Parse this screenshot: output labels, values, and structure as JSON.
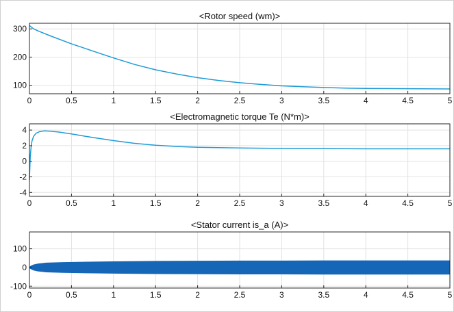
{
  "chart_data": [
    {
      "type": "line",
      "title": "<Rotor speed (wm)>",
      "xlim": [
        0,
        5
      ],
      "ylim": [
        70,
        320
      ],
      "x_ticks": [
        "0",
        "0.5",
        "1",
        "1.5",
        "2",
        "2.5",
        "3",
        "3.5",
        "4",
        "4.5",
        "5"
      ],
      "y_ticks": [
        "100",
        "200",
        "300"
      ],
      "grid": true,
      "color": "#1f9bd6",
      "series": [
        {
          "x": [
            0,
            0.05,
            0.1,
            0.25,
            0.5,
            0.75,
            1,
            1.25,
            1.5,
            1.75,
            2,
            2.25,
            2.5,
            2.75,
            3,
            3.25,
            3.5,
            3.75,
            4,
            4.5,
            5
          ],
          "values": [
            312,
            300,
            293,
            275,
            247,
            222,
            197,
            174,
            155,
            140,
            127,
            117,
            109,
            103,
            98,
            95,
            92,
            90,
            89,
            88,
            87
          ]
        }
      ]
    },
    {
      "type": "line",
      "title": "<Electromagnetic torque Te (N*m)>",
      "xlim": [
        0,
        5
      ],
      "ylim": [
        -4.5,
        4.8
      ],
      "x_ticks": [
        "0",
        "0.5",
        "1",
        "1.5",
        "2",
        "2.5",
        "3",
        "3.5",
        "4",
        "4.5",
        "5"
      ],
      "y_ticks": [
        "-4",
        "-2",
        "0",
        "2",
        "4"
      ],
      "grid": true,
      "color": "#1f9bd6",
      "series": [
        {
          "x": [
            0,
            0.005,
            0.01,
            0.02,
            0.03,
            0.05,
            0.08,
            0.12,
            0.18,
            0.25,
            0.35,
            0.5,
            0.75,
            1,
            1.25,
            1.5,
            1.75,
            2,
            2.5,
            3,
            3.5,
            4,
            4.5,
            5
          ],
          "values": [
            -2.4,
            -0.8,
            0.6,
            1.9,
            2.6,
            3.2,
            3.6,
            3.8,
            3.9,
            3.85,
            3.75,
            3.5,
            3.05,
            2.65,
            2.3,
            2.05,
            1.9,
            1.8,
            1.7,
            1.65,
            1.62,
            1.6,
            1.6,
            1.6
          ]
        }
      ]
    },
    {
      "type": "line",
      "title": "<Stator current is_a (A)>",
      "xlim": [
        0,
        5
      ],
      "ylim": [
        -110,
        190
      ],
      "x_ticks": [
        "0",
        "0.5",
        "1",
        "1.5",
        "2",
        "2.5",
        "3",
        "3.5",
        "4",
        "4.5",
        "5"
      ],
      "y_ticks": [
        "-100",
        "0",
        "100"
      ],
      "grid": true,
      "color": "#1566b7",
      "series": [
        {
          "x": [
            0,
            0.02,
            0.05,
            0.1,
            0.2,
            0.4,
            0.7,
            1,
            1.5,
            2,
            2.5,
            3,
            3.5,
            4,
            4.5,
            5
          ],
          "upper": [
            2,
            8,
            14,
            19,
            24,
            27,
            29,
            31,
            33,
            34,
            35,
            35,
            36,
            36,
            36,
            36
          ],
          "lower": [
            -2,
            -8,
            -14,
            -19,
            -24,
            -27,
            -29,
            -31,
            -33,
            -34,
            -35,
            -35,
            -36,
            -36,
            -36,
            -36
          ]
        }
      ]
    }
  ]
}
